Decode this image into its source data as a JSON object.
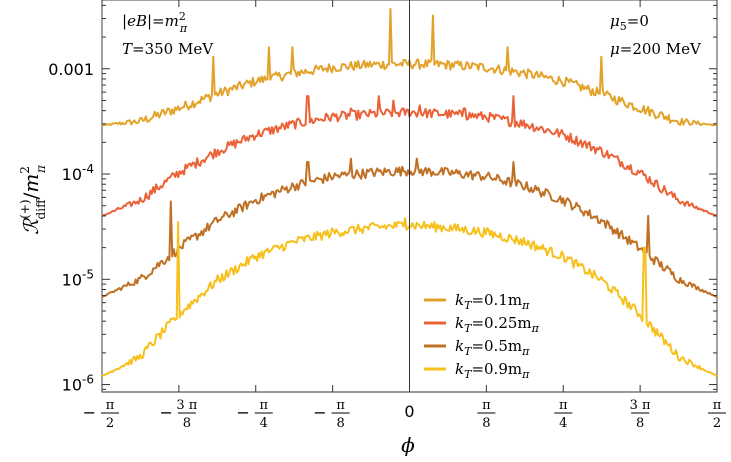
{
  "chart_data": {
    "type": "line",
    "xlabel": "ϕ",
    "ylabel": "ℛ(+)diff/m²π",
    "y_scale": "log",
    "xlim": [
      -1.5708,
      1.5708
    ],
    "ylim": [
      8.5e-07,
      0.0045
    ],
    "grid": false,
    "legend_position": "bottom-right",
    "x_ticks": [
      {
        "value": -1.5708,
        "sign": "−",
        "num": "π",
        "den": "2"
      },
      {
        "value": -1.1781,
        "sign": "−",
        "num": "3 π",
        "den": "8"
      },
      {
        "value": -0.7854,
        "sign": "−",
        "num": "π",
        "den": "4"
      },
      {
        "value": -0.3927,
        "sign": "−",
        "num": "π",
        "den": "8"
      },
      {
        "value": 0,
        "text": "0"
      },
      {
        "value": 0.3927,
        "sign": "",
        "num": "π",
        "den": "8"
      },
      {
        "value": 0.7854,
        "sign": "",
        "num": "π",
        "den": "4"
      },
      {
        "value": 1.1781,
        "sign": "",
        "num": "3 π",
        "den": "8"
      },
      {
        "value": 1.5708,
        "sign": "",
        "num": "π",
        "den": "2"
      }
    ],
    "y_ticks": [
      {
        "value": 1e-06,
        "base": "10",
        "exp": "-6"
      },
      {
        "value": 1e-05,
        "base": "10",
        "exp": "-5"
      },
      {
        "value": 0.0001,
        "base": "10",
        "exp": "-4"
      },
      {
        "value": 0.001,
        "text": "0.001"
      }
    ],
    "annotations": {
      "top_left_1": "|eB|=m²π",
      "top_left_2": "T=350 MeV",
      "top_right_1": "μ5=0",
      "top_right_2": "μ=200 MeV"
    },
    "series": [
      {
        "name": "kT=0.1mπ",
        "color": "#E3A32B",
        "x": [
          -1.5708,
          -1.3744,
          -1.1781,
          -0.9817,
          -0.7854,
          -0.589,
          -0.3927,
          -0.1963,
          0,
          0.1963,
          0.3927,
          0.589,
          0.7854,
          0.9817,
          1.1781,
          1.3744,
          1.5708
        ],
        "values": [
          0.00029,
          0.00031,
          0.00041,
          0.00056,
          0.00074,
          0.00088,
          0.001,
          0.00106,
          0.00108,
          0.00106,
          0.001,
          0.00088,
          0.00074,
          0.00056,
          0.00041,
          0.00031,
          0.00029
        ],
        "spikes": [
          [
            -1.0,
            0.0013
          ],
          [
            -0.72,
            0.0016
          ],
          [
            -0.6,
            0.0016
          ],
          [
            -0.1,
            0.0037
          ],
          [
            0.12,
            0.0032
          ],
          [
            0.5,
            0.0016
          ],
          [
            0.98,
            0.0013
          ]
        ]
      },
      {
        "name": "kT=0.25mπ",
        "color": "#EB6238",
        "x": [
          -1.5708,
          -1.3744,
          -1.1781,
          -0.9817,
          -0.7854,
          -0.589,
          -0.3927,
          -0.1963,
          0,
          0.1963,
          0.3927,
          0.589,
          0.7854,
          0.9817,
          1.1781,
          1.3744,
          1.5708
        ],
        "values": [
          4e-05,
          5.5e-05,
          0.0001,
          0.00016,
          0.00023,
          0.00029,
          0.00034,
          0.00036,
          0.000375,
          0.00036,
          0.00034,
          0.00029,
          0.00023,
          0.00016,
          0.0001,
          5.5e-05,
          4e-05
        ],
        "spikes": [
          [
            -0.52,
            0.00055
          ],
          [
            -0.3,
            0.00042
          ],
          [
            -0.16,
            0.00055
          ],
          [
            -0.08,
            0.0005
          ],
          [
            0.05,
            0.00045
          ],
          [
            0.28,
            0.00042
          ],
          [
            0.53,
            0.00055
          ]
        ]
      },
      {
        "name": "kT=0.5mπ",
        "color": "#C07024",
        "x": [
          -1.5708,
          -1.3744,
          -1.1781,
          -0.9817,
          -0.7854,
          -0.589,
          -0.3927,
          -0.1963,
          0,
          0.1963,
          0.3927,
          0.589,
          0.7854,
          0.9817,
          1.1781,
          1.3744,
          1.5708
        ],
        "values": [
          6.8e-06,
          9.8e-06,
          1.9e-05,
          3.5e-05,
          5.5e-05,
          7.5e-05,
          9.2e-05,
          0.0001,
          0.000105,
          0.0001,
          9.2e-05,
          7.5e-05,
          5.5e-05,
          3.5e-05,
          1.9e-05,
          9.8e-06,
          6.8e-06
        ],
        "spikes": [
          [
            -1.22,
            5.5e-05
          ],
          [
            -0.52,
            0.00013
          ],
          [
            -0.3,
            0.00014
          ],
          [
            0.04,
            0.00014
          ],
          [
            0.53,
            0.00013
          ],
          [
            1.22,
            4e-05
          ]
        ]
      },
      {
        "name": "kT=0.9mπ",
        "color": "#F7C01C",
        "x": [
          -1.5708,
          -1.3744,
          -1.1781,
          -0.9817,
          -0.7854,
          -0.589,
          -0.3927,
          -0.1963,
          0,
          0.1963,
          0.3927,
          0.589,
          0.7854,
          0.9817,
          1.1781,
          1.3744,
          1.5708
        ],
        "values": [
          1.2e-06,
          1.8e-06,
          4.5e-06,
          9.5e-06,
          1.6e-05,
          2.2e-05,
          2.7e-05,
          3e-05,
          3.2e-05,
          3e-05,
          2.7e-05,
          2.2e-05,
          1.6e-05,
          9.5e-06,
          4.5e-06,
          1.8e-06,
          1.2e-06
        ],
        "spikes": [
          [
            -1.18,
            3.5e-05
          ],
          [
            -0.02,
            3.8e-05
          ],
          [
            1.2,
            2e-05
          ]
        ]
      }
    ],
    "legend": [
      {
        "label": "kT=0.1mπ",
        "sub": "T",
        "pi": "π",
        "lhs": "k",
        "mid": "=0.1m",
        "color": "#E3A32B"
      },
      {
        "label": "kT=0.25mπ",
        "sub": "T",
        "pi": "π",
        "lhs": "k",
        "mid": "=0.25m",
        "color": "#EB6238"
      },
      {
        "label": "kT=0.5mπ",
        "sub": "T",
        "pi": "π",
        "lhs": "k",
        "mid": "=0.5m",
        "color": "#C07024"
      },
      {
        "label": "kT=0.9mπ",
        "sub": "T",
        "pi": "π",
        "lhs": "k",
        "mid": "=0.9m",
        "color": "#F7C01C"
      }
    ]
  }
}
